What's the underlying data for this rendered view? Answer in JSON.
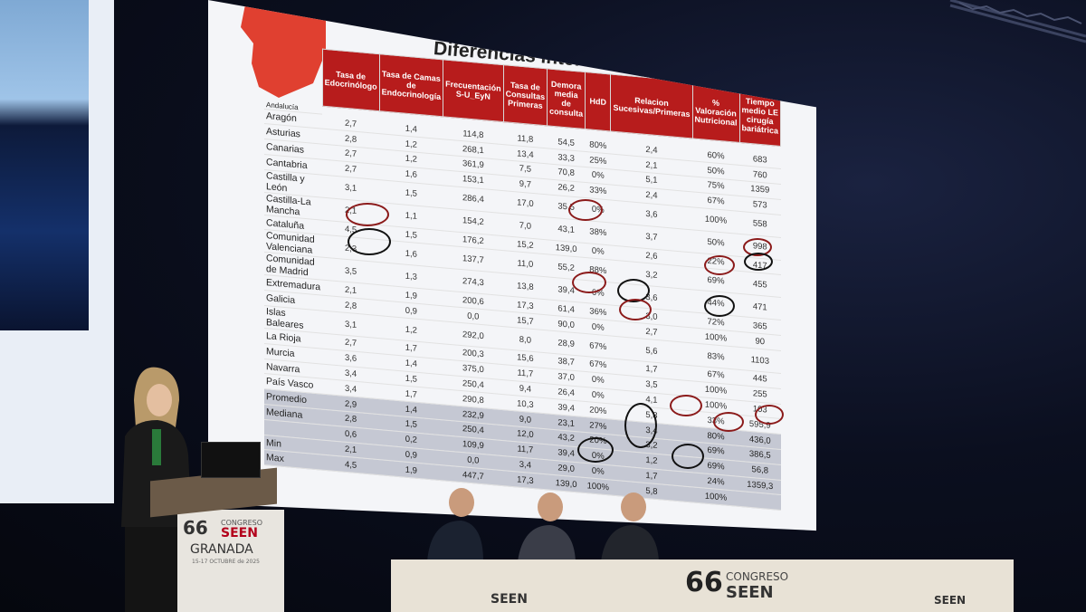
{
  "slide": {
    "title": "Diferencias interterritoriales",
    "columns": [
      "Tasa de Edocrinólogo",
      "Tasa de Camas de Endocrinología",
      "Frecuentación S-U_EyN",
      "Tasa de Consultas Primeras",
      "Demora media de consulta",
      "HdD",
      "Relacion Sucesivas/Primeras",
      "% Valoración Nutricional",
      "Tiempo medio LE cirugía bariátrica"
    ],
    "rows": [
      {
        "region": "Aragón",
        "values": [
          "2,7",
          "1,4",
          "114,8",
          "11,8",
          "54,5",
          "80%",
          "2,4",
          "60%",
          "683"
        ]
      },
      {
        "region": "Asturias",
        "values": [
          "2,8",
          "1,2",
          "268,1",
          "13,4",
          "33,3",
          "25%",
          "2,1",
          "50%",
          "760"
        ]
      },
      {
        "region": "Canarias",
        "values": [
          "2,7",
          "1,2",
          "361,9",
          "7,5",
          "70,8",
          "0%",
          "5,1",
          "75%",
          "1359"
        ]
      },
      {
        "region": "Cantabria",
        "values": [
          "2,7",
          "1,6",
          "153,1",
          "9,7",
          "26,2",
          "33%",
          "2,4",
          "67%",
          "573"
        ]
      },
      {
        "region": "Castilla y León",
        "values": [
          "3,1",
          "1,5",
          "286,4",
          "17,0",
          "35,5",
          "0%",
          "3,6",
          "100%",
          "558"
        ]
      },
      {
        "region": "Castilla-La Mancha",
        "values": [
          "2,1",
          "1,1",
          "154,2",
          "7,0",
          "43,1",
          "38%",
          "3,7",
          "50%",
          "998"
        ]
      },
      {
        "region": "Cataluña",
        "values": [
          "4,5",
          "1,5",
          "176,2",
          "15,2",
          "139,0",
          "0%",
          "2,6",
          "22%",
          "417"
        ]
      },
      {
        "region": "Comunidad Valenciana",
        "values": [
          "2,3",
          "1,6",
          "137,7",
          "11,0",
          "55,2",
          "88%",
          "3,2",
          "69%",
          "455"
        ]
      },
      {
        "region": "Comunidad de Madrid",
        "values": [
          "3,5",
          "1,3",
          "274,3",
          "13,8",
          "39,4",
          "6%",
          "3,6",
          "44%",
          "471"
        ]
      },
      {
        "region": "Extremadura",
        "values": [
          "2,1",
          "1,9",
          "200,6",
          "17,3",
          "61,4",
          "36%",
          "3,0",
          "72%",
          "365"
        ]
      },
      {
        "region": "Galicia",
        "values": [
          "2,8",
          "0,9",
          "0,0",
          "15,7",
          "90,0",
          "0%",
          "2,7",
          "100%",
          "90"
        ]
      },
      {
        "region": "Islas Baleares",
        "values": [
          "3,1",
          "1,2",
          "292,0",
          "8,0",
          "28,9",
          "67%",
          "5,6",
          "83%",
          "1103"
        ]
      },
      {
        "region": "La Rioja",
        "values": [
          "2,7",
          "1,7",
          "200,3",
          "15,6",
          "38,7",
          "67%",
          "1,7",
          "67%",
          "445"
        ]
      },
      {
        "region": "Murcia",
        "values": [
          "3,6",
          "1,4",
          "375,0",
          "11,7",
          "37,0",
          "0%",
          "3,5",
          "100%",
          "255"
        ]
      },
      {
        "region": "Navarra",
        "values": [
          "3,4",
          "1,5",
          "250,4",
          "9,4",
          "26,4",
          "0%",
          "4,1",
          "100%",
          "103"
        ]
      },
      {
        "region": "País Vasco",
        "values": [
          "3,4",
          "1,7",
          "290,8",
          "10,3",
          "39,4",
          "20%",
          "5,8",
          "33%",
          "595,9"
        ]
      }
    ],
    "summary": [
      {
        "label": "Promedio",
        "values": [
          "2,9",
          "1,4",
          "232,9",
          "9,0",
          "23,1",
          "27%",
          "3,4",
          "80%",
          "436,0"
        ]
      },
      {
        "label": "Mediana",
        "values": [
          "2,8",
          "1,5",
          "250,4",
          "12,0",
          "43,2",
          "20%",
          "3,2",
          "69%",
          "386,5"
        ]
      },
      {
        "label": "",
        "values": [
          "0,6",
          "0,2",
          "109,9",
          "11,7",
          "39,4",
          "0%",
          "1,2",
          "69%",
          "56,8"
        ]
      },
      {
        "label": "Min",
        "values": [
          "2,1",
          "0,9",
          "0,0",
          "3,4",
          "29,0",
          "0%",
          "1,7",
          "24%",
          "1359,3"
        ]
      },
      {
        "label": "Max",
        "values": [
          "4,5",
          "1,9",
          "447,7",
          "17,3",
          "139,0",
          "100%",
          "5,8",
          "100%",
          ""
        ]
      }
    ],
    "cut_region": "Andalucía"
  },
  "podium": {
    "number": "66",
    "congreso": "CONGRESO",
    "brand": "SEEN",
    "city": "GRANADA",
    "dates": "15-17 OCTUBRE de 2025"
  },
  "desk": {
    "number": "66",
    "congreso": "CONGRESO",
    "brand": "SEEN",
    "brand_left": "SEEN",
    "brand_right": "SEEN"
  },
  "colors": {
    "header": "#b71c1c",
    "circle_red": "#8b1a1a",
    "circle_black": "#111111",
    "screen": "#f4f5f8"
  }
}
